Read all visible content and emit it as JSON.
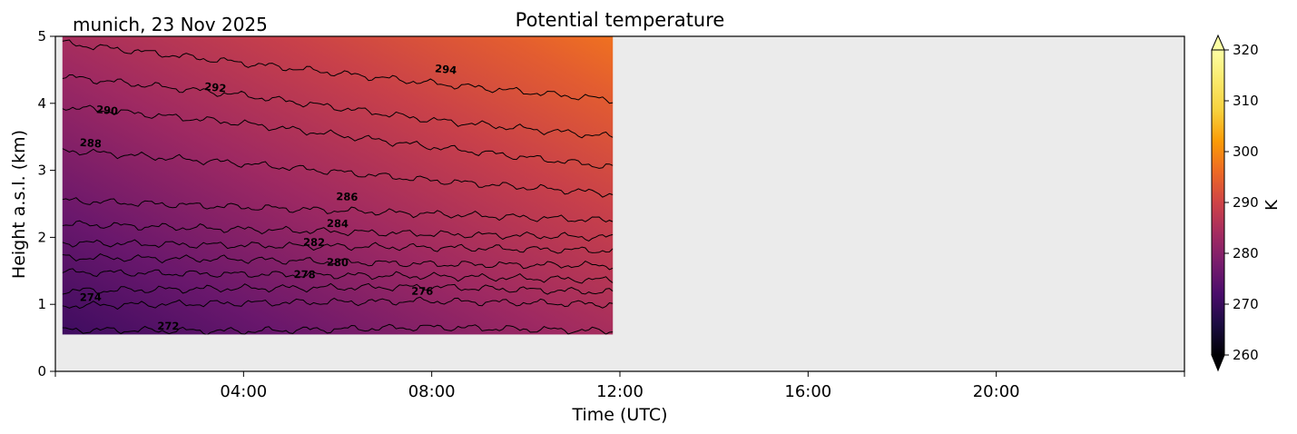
{
  "chart_data": {
    "type": "heatmap",
    "title": "Potential temperature",
    "subtitle": "munich, 23 Nov 2025",
    "xlabel": "Time (UTC)",
    "ylabel": "Height a.s.l. (km)",
    "xlim_hours": [
      0,
      24
    ],
    "ylim_km": [
      0,
      5
    ],
    "x_ticks": [
      "04:00",
      "08:00",
      "12:00",
      "16:00",
      "20:00"
    ],
    "x_tick_hours": [
      4,
      8,
      12,
      16,
      20
    ],
    "y_ticks": [
      0,
      1,
      2,
      3,
      4,
      5
    ],
    "data_extent": {
      "time_hours": [
        0.15,
        11.85
      ],
      "height_km": [
        0.55,
        5.0
      ]
    },
    "colorbar": {
      "label": "K",
      "range": [
        260,
        320
      ],
      "ticks": [
        260,
        270,
        280,
        290,
        300,
        310,
        320
      ],
      "colormap": "inferno",
      "extend": "both"
    },
    "missing_color": "#ebebeb",
    "contour_interval_K": 2,
    "contours": [
      {
        "level": 272,
        "points": [
          [
            0.15,
            0.62
          ],
          [
            4,
            0.6
          ],
          [
            8,
            0.66
          ],
          [
            11.85,
            0.6
          ]
        ],
        "label": {
          "x": 2.4,
          "y": 0.67
        }
      },
      {
        "level": 274,
        "points": [
          [
            0.15,
            0.98
          ],
          [
            4,
            1.02
          ],
          [
            8,
            1.05
          ],
          [
            11.85,
            1.0
          ]
        ],
        "label": {
          "x": 0.75,
          "y": 1.1
        }
      },
      {
        "level": 276,
        "points": [
          [
            0.15,
            1.2
          ],
          [
            4,
            1.24
          ],
          [
            8,
            1.26
          ],
          [
            11.85,
            1.18
          ]
        ],
        "label": {
          "x": 7.8,
          "y": 1.19
        }
      },
      {
        "level": 278,
        "points": [
          [
            0.15,
            1.48
          ],
          [
            4,
            1.45
          ],
          [
            8,
            1.42
          ],
          [
            11.85,
            1.36
          ]
        ],
        "label": {
          "x": 5.3,
          "y": 1.44
        }
      },
      {
        "level": 280,
        "points": [
          [
            0.15,
            1.7
          ],
          [
            4,
            1.67
          ],
          [
            8,
            1.6
          ],
          [
            11.85,
            1.58
          ]
        ],
        "label": {
          "x": 6.0,
          "y": 1.62
        }
      },
      {
        "level": 282,
        "points": [
          [
            0.15,
            1.92
          ],
          [
            4,
            1.88
          ],
          [
            8,
            1.85
          ],
          [
            11.85,
            1.8
          ]
        ],
        "label": {
          "x": 5.5,
          "y": 1.92
        }
      },
      {
        "level": 284,
        "points": [
          [
            0.15,
            2.2
          ],
          [
            4,
            2.12
          ],
          [
            8,
            2.05
          ],
          [
            11.85,
            2.0
          ]
        ],
        "label": {
          "x": 6.0,
          "y": 2.2
        }
      },
      {
        "level": 286,
        "points": [
          [
            0.15,
            2.55
          ],
          [
            4,
            2.45
          ],
          [
            8,
            2.35
          ],
          [
            11.85,
            2.25
          ]
        ],
        "label": {
          "x": 6.2,
          "y": 2.6
        }
      },
      {
        "level": 288,
        "points": [
          [
            0.15,
            3.3
          ],
          [
            4,
            3.1
          ],
          [
            8,
            2.85
          ],
          [
            11.85,
            2.65
          ]
        ],
        "label": {
          "x": 0.75,
          "y": 3.4
        }
      },
      {
        "level": 290,
        "points": [
          [
            0.15,
            3.95
          ],
          [
            4,
            3.7
          ],
          [
            8,
            3.35
          ],
          [
            11.85,
            3.05
          ]
        ],
        "label": {
          "x": 1.1,
          "y": 3.89
        }
      },
      {
        "level": 292,
        "points": [
          [
            0.15,
            4.4
          ],
          [
            4,
            4.12
          ],
          [
            8,
            3.75
          ],
          [
            11.85,
            3.5
          ]
        ],
        "label": {
          "x": 3.4,
          "y": 4.23
        }
      },
      {
        "level": 294,
        "points": [
          [
            0.15,
            4.9
          ],
          [
            4,
            4.6
          ],
          [
            8,
            4.3
          ],
          [
            11.85,
            4.05
          ]
        ],
        "label": {
          "x": 8.3,
          "y": 4.5
        }
      }
    ]
  }
}
